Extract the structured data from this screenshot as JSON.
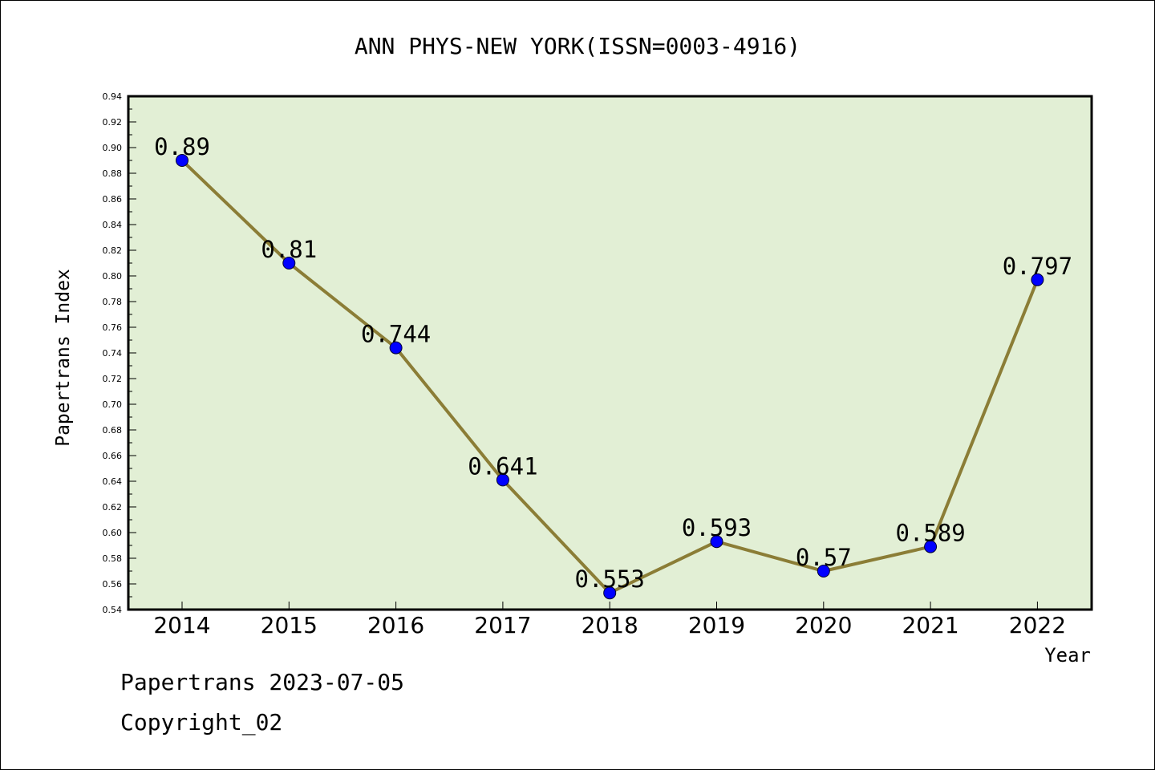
{
  "chart_data": {
    "type": "line",
    "title": "ANN PHYS-NEW YORK(ISSN=0003-4916)",
    "xlabel": "Year",
    "ylabel": "Papertrans Index",
    "categories": [
      "2014",
      "2015",
      "2016",
      "2017",
      "2018",
      "2019",
      "2020",
      "2021",
      "2022"
    ],
    "series": [
      {
        "values": [
          0.89,
          0.81,
          0.744,
          0.641,
          0.553,
          0.593,
          0.57,
          0.589,
          0.797
        ],
        "labels": [
          "0.89",
          "0.81",
          "0.744",
          "0.641",
          "0.553",
          "0.593",
          "0.57",
          "0.589",
          "0.797"
        ]
      }
    ],
    "ylim": [
      0.54,
      0.94
    ],
    "yticks": [
      "0.54",
      "0.56",
      "0.58",
      "0.60",
      "0.62",
      "0.64",
      "0.66",
      "0.68",
      "0.70",
      "0.72",
      "0.74",
      "0.76",
      "0.78",
      "0.80",
      "0.82",
      "0.84",
      "0.86",
      "0.88",
      "0.90",
      "0.92",
      "0.94"
    ],
    "grid": false,
    "legend": "none",
    "colors": {
      "plot_background": "#e2efd5",
      "line": "#8b7d36",
      "marker": "#0000ff",
      "axis": "#000000"
    }
  },
  "footer": {
    "line1": "Papertrans 2023-07-05",
    "line2": "Copyright_02"
  }
}
